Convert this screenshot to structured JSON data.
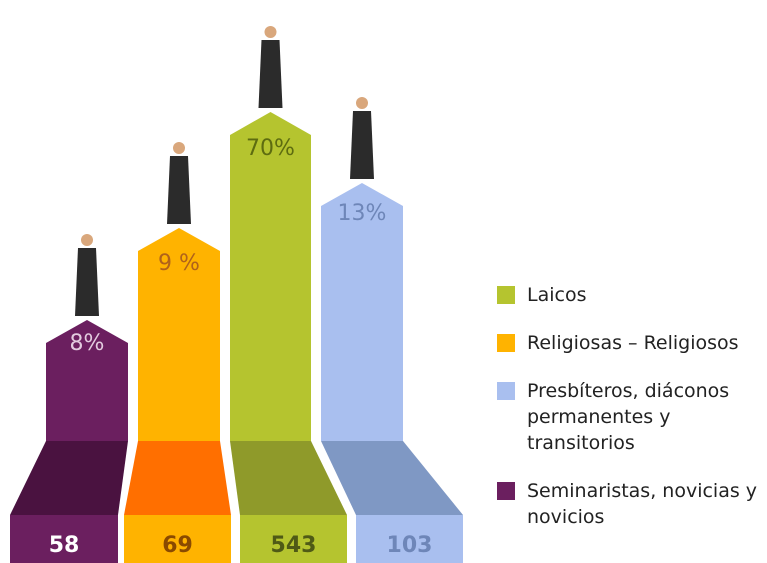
{
  "chart_data": {
    "type": "infographic",
    "series": [
      {
        "name": "Seminaristas, novicias y novicios",
        "color": "#6b1f5f",
        "label": "8%",
        "count": 58
      },
      {
        "name": "Religiosas – Religiosos",
        "color": "#ffb300",
        "label": "9 %",
        "count": 69
      },
      {
        "name": "Laicos",
        "color": "#b5c42f",
        "label": "70%",
        "count": 543
      },
      {
        "name": "Presbíteros, diáconos permanentes y transitorios",
        "color": "#a9bfef",
        "label": "13%",
        "count": 103
      }
    ]
  }
}
